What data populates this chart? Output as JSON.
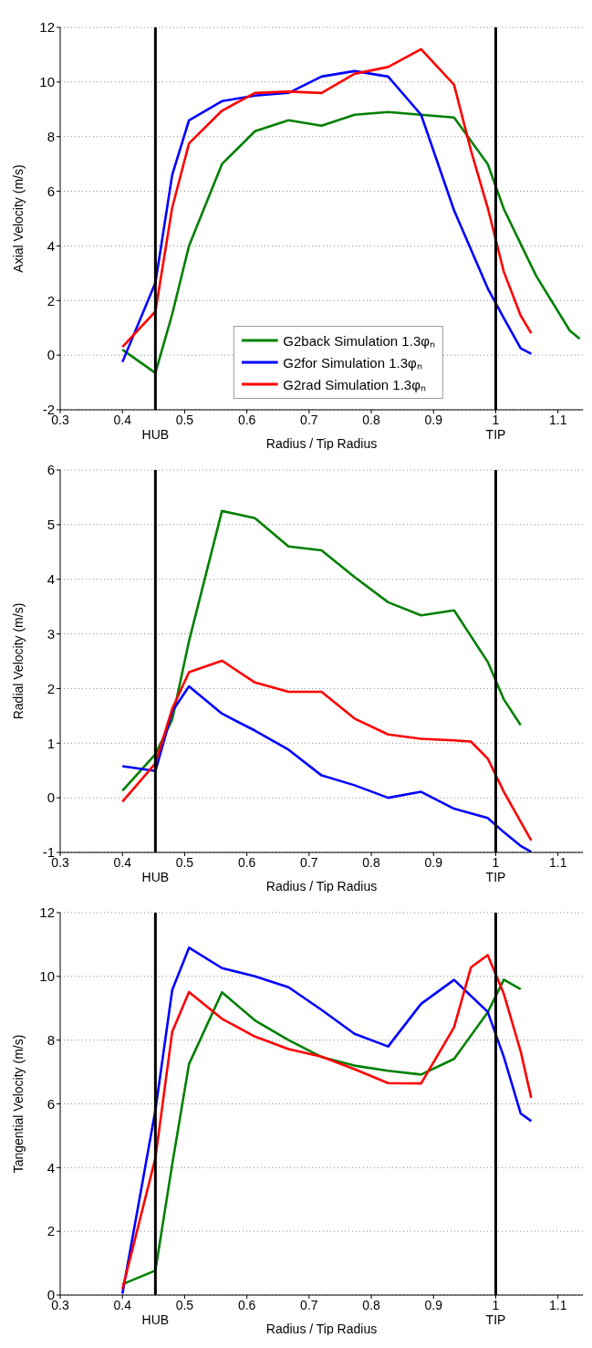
{
  "chart_data": [
    {
      "type": "line",
      "ylabel": "Axial Velocity (m/s)",
      "xlabel": "Radius / Tip Radius",
      "xlim": [
        0.3,
        1.14
      ],
      "xticks": [
        0.3,
        0.4,
        0.5,
        0.6,
        0.7,
        0.8,
        0.9,
        1,
        1.1
      ],
      "ylim": [
        -2,
        12
      ],
      "yticks": [
        -2,
        0,
        2,
        4,
        6,
        8,
        10,
        12
      ],
      "grid": "y",
      "legend": "bottom",
      "line_style": "solid",
      "marker": "none",
      "ref_lines": [
        {
          "axis": "x",
          "value": 0.453,
          "label": "HUB",
          "color": "#000000"
        },
        {
          "axis": "x",
          "value": 1.0,
          "label": "TIP",
          "color": "#000000"
        }
      ],
      "series": [
        {
          "name": "G2back Simulation 1.3φₙ",
          "color": "#008000",
          "x": [
            0.4,
            0.453,
            0.48,
            0.507,
            0.56,
            0.613,
            0.667,
            0.72,
            0.773,
            0.827,
            0.88,
            0.933,
            0.987,
            1.013,
            1.065,
            1.119,
            1.135
          ],
          "values": [
            0.2,
            -0.65,
            1.5,
            4.0,
            7.0,
            8.2,
            8.6,
            8.4,
            8.8,
            8.9,
            8.8,
            8.7,
            7.0,
            5.35,
            2.9,
            0.9,
            0.6
          ]
        },
        {
          "name": "G2for Simulation 1.3φₙ",
          "color": "#0000ff",
          "x": [
            0.4,
            0.453,
            0.48,
            0.507,
            0.56,
            0.613,
            0.667,
            0.72,
            0.773,
            0.827,
            0.88,
            0.933,
            0.987,
            1.013,
            1.04,
            1.057
          ],
          "values": [
            -0.25,
            2.65,
            6.6,
            8.6,
            9.3,
            9.5,
            9.6,
            10.2,
            10.4,
            10.2,
            8.8,
            5.3,
            2.45,
            1.35,
            0.25,
            0.05
          ]
        },
        {
          "name": "G2rad Simulation 1.3φₙ",
          "color": "#ff0000",
          "x": [
            0.4,
            0.453,
            0.48,
            0.507,
            0.56,
            0.613,
            0.667,
            0.72,
            0.773,
            0.827,
            0.88,
            0.933,
            0.96,
            0.987,
            1.013,
            1.04,
            1.057
          ],
          "values": [
            0.3,
            1.6,
            5.4,
            7.75,
            8.95,
            9.6,
            9.65,
            9.6,
            10.3,
            10.55,
            11.2,
            9.9,
            7.5,
            5.4,
            3.05,
            1.45,
            0.8
          ]
        }
      ]
    },
    {
      "type": "line",
      "ylabel": "Radial Velocity (m/s)",
      "xlabel": "Radius / Tip Radius",
      "xlim": [
        0.3,
        1.14
      ],
      "xticks": [
        0.3,
        0.4,
        0.5,
        0.6,
        0.7,
        0.8,
        0.9,
        1,
        1.1
      ],
      "ylim": [
        -1,
        6
      ],
      "yticks": [
        -1,
        0,
        1,
        2,
        3,
        4,
        5,
        6
      ],
      "grid": "y",
      "line_style": "solid",
      "marker": "none",
      "ref_lines": [
        {
          "axis": "x",
          "value": 0.453,
          "label": "HUB",
          "color": "#000000"
        },
        {
          "axis": "x",
          "value": 1.0,
          "label": "TIP",
          "color": "#000000"
        }
      ],
      "series": [
        {
          "color": "#008000",
          "x": [
            0.4,
            0.453,
            0.48,
            0.507,
            0.56,
            0.613,
            0.667,
            0.72,
            0.773,
            0.827,
            0.88,
            0.933,
            0.987,
            1.013,
            1.04
          ],
          "values": [
            0.13,
            0.8,
            1.43,
            2.87,
            5.25,
            5.12,
            4.6,
            4.53,
            4.04,
            3.58,
            3.34,
            3.43,
            2.49,
            1.8,
            1.33
          ]
        },
        {
          "color": "#0000ff",
          "x": [
            0.4,
            0.453,
            0.48,
            0.507,
            0.56,
            0.613,
            0.667,
            0.72,
            0.773,
            0.827,
            0.88,
            0.933,
            0.987,
            1.013,
            1.04,
            1.057
          ],
          "values": [
            0.58,
            0.49,
            1.58,
            2.04,
            1.54,
            1.23,
            0.88,
            0.41,
            0.23,
            0.0,
            0.11,
            -0.2,
            -0.37,
            -0.63,
            -0.88,
            -0.99
          ]
        },
        {
          "color": "#ff0000",
          "x": [
            0.4,
            0.453,
            0.48,
            0.507,
            0.56,
            0.613,
            0.667,
            0.72,
            0.773,
            0.827,
            0.88,
            0.933,
            0.96,
            0.987,
            1.013,
            1.04,
            1.057
          ],
          "values": [
            -0.07,
            0.63,
            1.63,
            2.3,
            2.51,
            2.11,
            1.94,
            1.94,
            1.45,
            1.16,
            1.08,
            1.05,
            1.03,
            0.72,
            0.11,
            -0.44,
            -0.78
          ]
        }
      ]
    },
    {
      "type": "line",
      "ylabel": "Tangential Velocity (m/s)",
      "xlabel": "Radius / Tip Radius",
      "xlim": [
        0.3,
        1.14
      ],
      "xticks": [
        0.3,
        0.4,
        0.5,
        0.6,
        0.7,
        0.8,
        0.9,
        1,
        1.1
      ],
      "ylim": [
        0,
        12
      ],
      "yticks": [
        0,
        2,
        4,
        6,
        8,
        10,
        12
      ],
      "grid": "y",
      "line_style": "solid",
      "marker": "none",
      "ref_lines": [
        {
          "axis": "x",
          "value": 0.453,
          "label": "HUB",
          "color": "#000000"
        },
        {
          "axis": "x",
          "value": 1.0,
          "label": "TIP",
          "color": "#000000"
        }
      ],
      "series": [
        {
          "color": "#008000",
          "x": [
            0.4,
            0.453,
            0.48,
            0.507,
            0.56,
            0.613,
            0.667,
            0.72,
            0.773,
            0.827,
            0.88,
            0.933,
            0.987,
            1.013,
            1.04
          ],
          "values": [
            0.34,
            0.77,
            4.1,
            7.25,
            9.5,
            8.62,
            8.0,
            7.47,
            7.2,
            7.04,
            6.92,
            7.41,
            8.87,
            9.9,
            9.6
          ]
        },
        {
          "color": "#0000ff",
          "x": [
            0.4,
            0.453,
            0.48,
            0.507,
            0.56,
            0.613,
            0.667,
            0.72,
            0.773,
            0.827,
            0.88,
            0.933,
            0.987,
            1.013,
            1.04,
            1.057
          ],
          "values": [
            0.04,
            5.8,
            9.57,
            10.9,
            10.26,
            10.0,
            9.66,
            8.95,
            8.2,
            7.8,
            9.14,
            9.89,
            8.89,
            7.47,
            5.7,
            5.46
          ]
        },
        {
          "color": "#ff0000",
          "x": [
            0.4,
            0.453,
            0.48,
            0.507,
            0.56,
            0.613,
            0.667,
            0.72,
            0.773,
            0.827,
            0.88,
            0.933,
            0.96,
            0.987,
            1.013,
            1.04,
            1.057
          ],
          "values": [
            0.19,
            4.3,
            8.26,
            9.51,
            8.67,
            8.11,
            7.72,
            7.48,
            7.09,
            6.65,
            6.64,
            8.4,
            10.28,
            10.67,
            9.45,
            7.65,
            6.19
          ]
        }
      ]
    }
  ]
}
